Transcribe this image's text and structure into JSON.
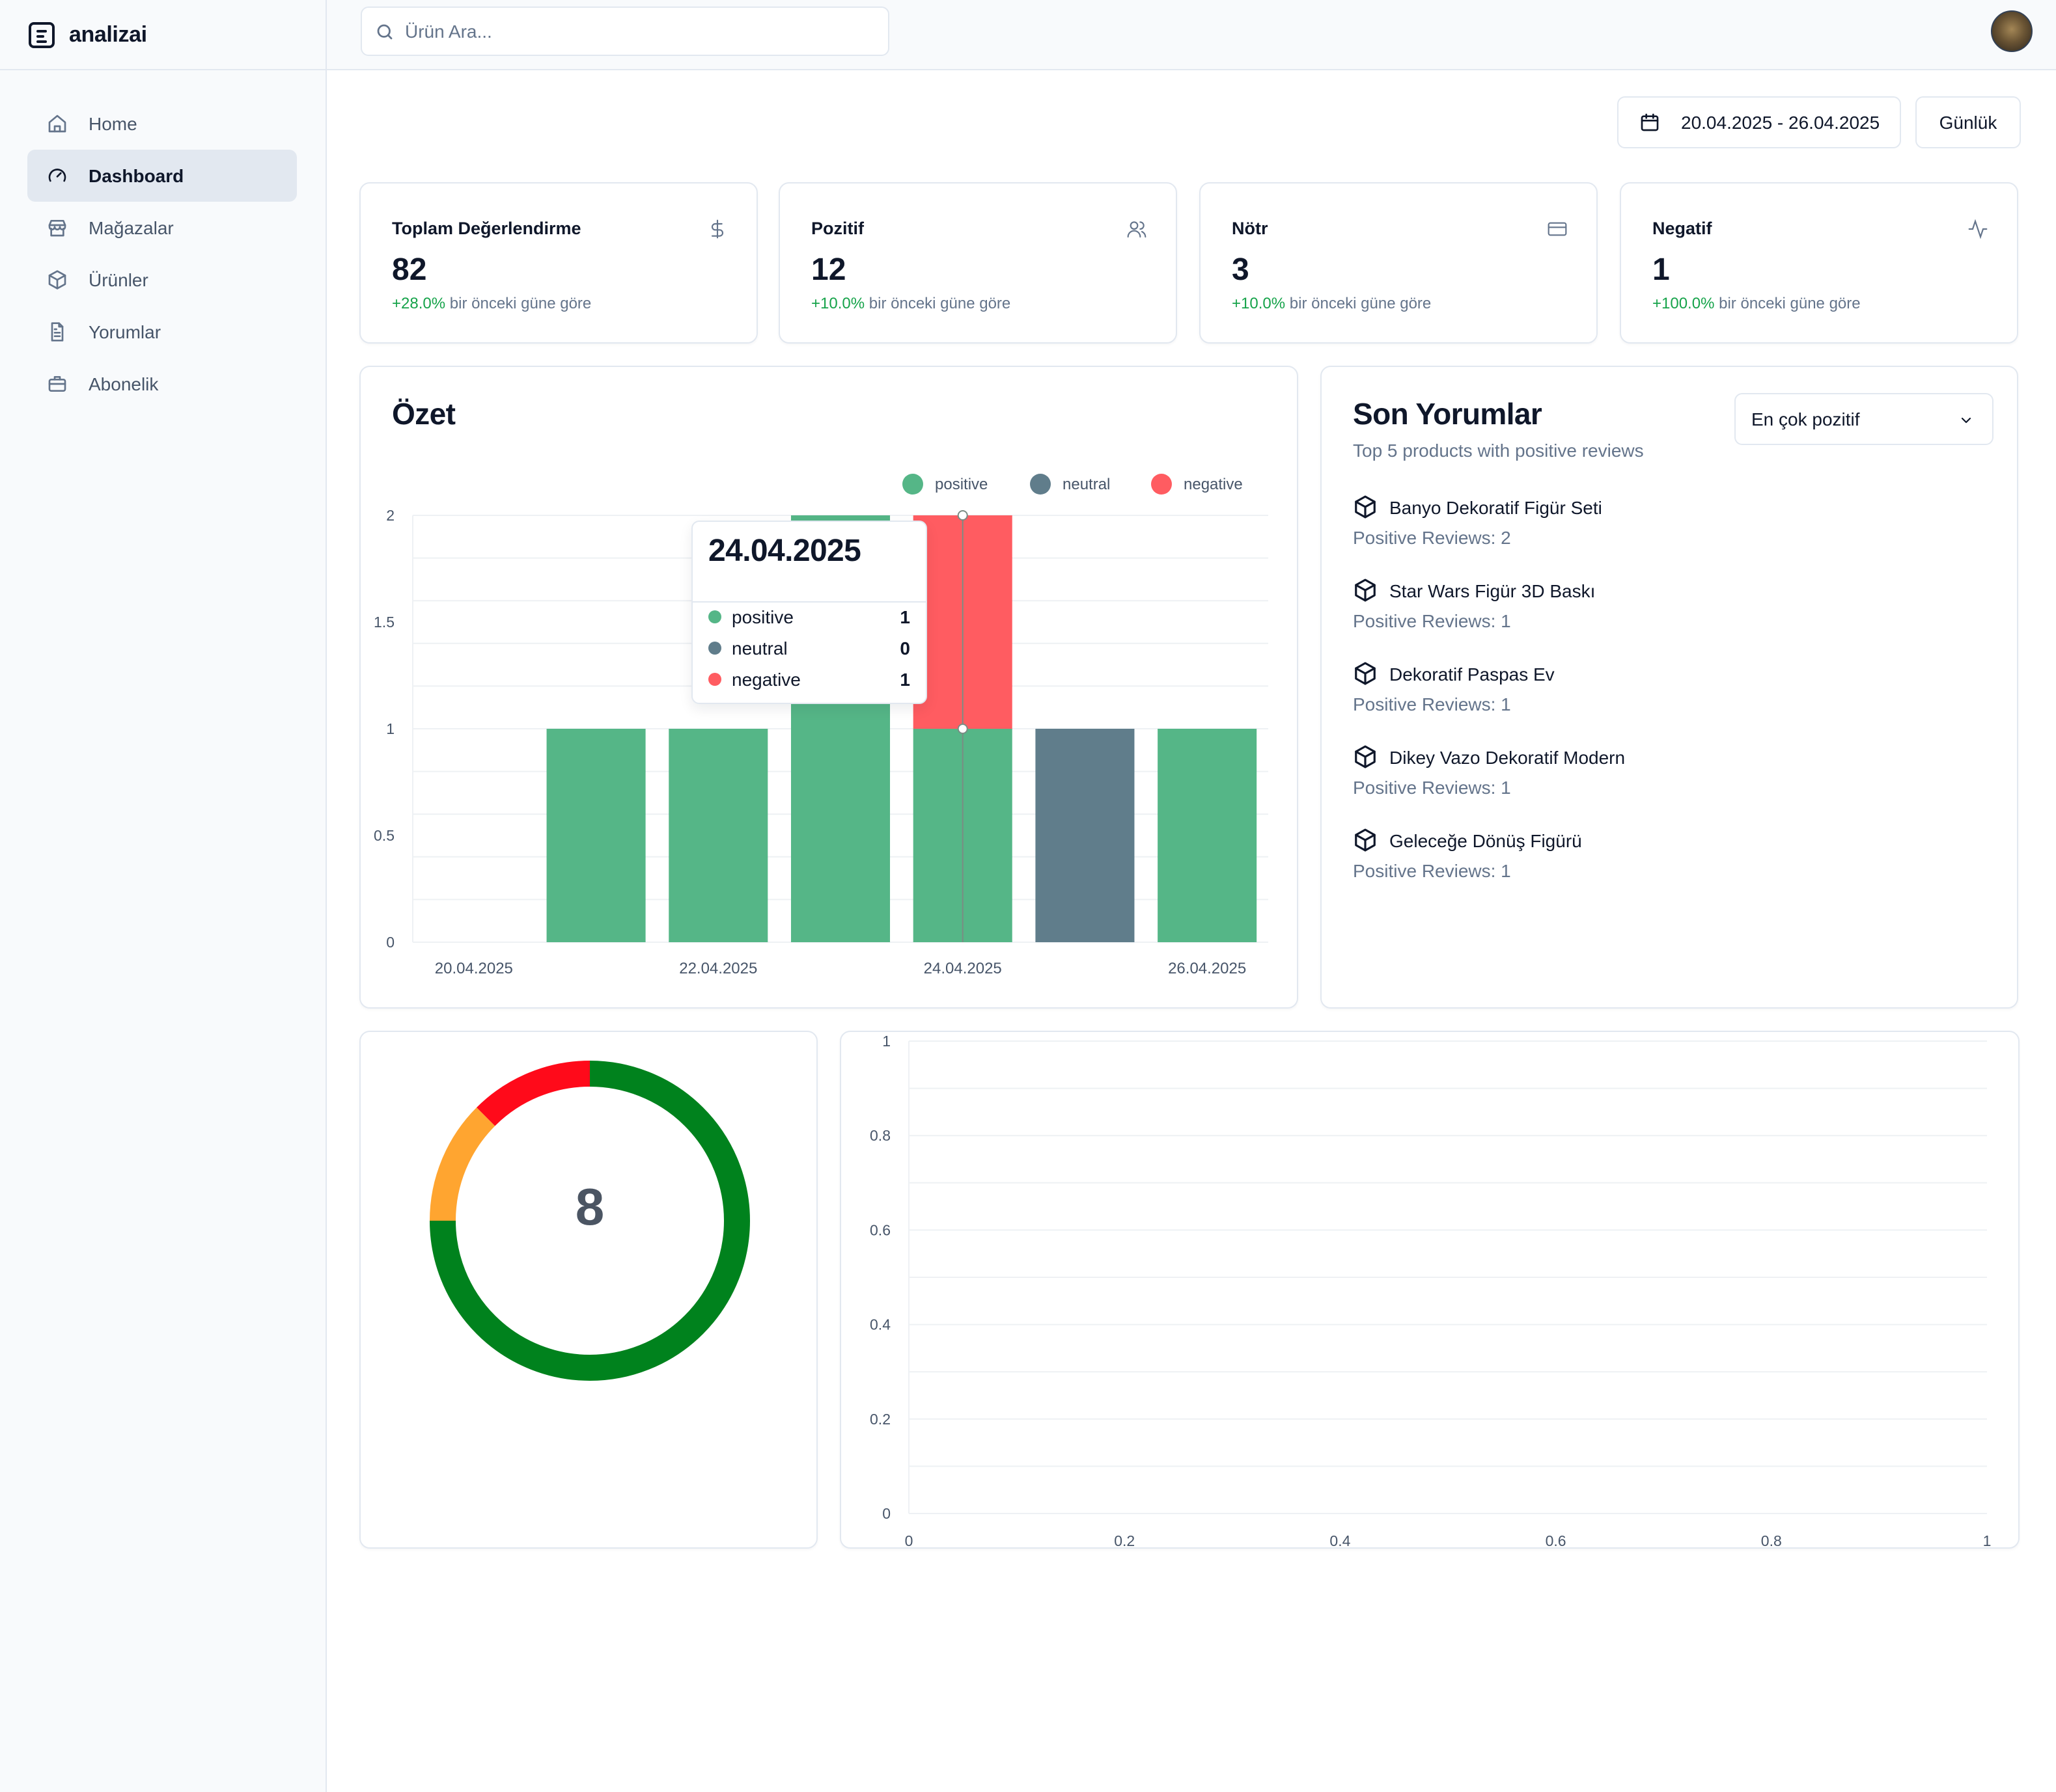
{
  "app": {
    "name": "analizai"
  },
  "sidebar": {
    "items": [
      {
        "label": "Home",
        "icon": "home-icon",
        "active": false
      },
      {
        "label": "Dashboard",
        "icon": "gauge-icon",
        "active": true
      },
      {
        "label": "Mağazalar",
        "icon": "store-icon",
        "active": false
      },
      {
        "label": "Ürünler",
        "icon": "package-icon",
        "active": false
      },
      {
        "label": "Yorumlar",
        "icon": "file-text-icon",
        "active": false
      },
      {
        "label": "Abonelik",
        "icon": "briefcase-icon",
        "active": false
      }
    ]
  },
  "search": {
    "placeholder": "Ürün Ara...",
    "value": ""
  },
  "toolbar": {
    "date_range": "20.04.2025 - 26.04.2025",
    "period": "Günlük"
  },
  "stats": [
    {
      "title": "Toplam Değerlendirme",
      "value": "82",
      "delta": "+28.0%",
      "delta_text": "bir önceki güne göre",
      "icon": "dollar-icon"
    },
    {
      "title": "Pozitif",
      "value": "12",
      "delta": "+10.0%",
      "delta_text": "bir önceki güne göre",
      "icon": "users-icon"
    },
    {
      "title": "Nötr",
      "value": "3",
      "delta": "+10.0%",
      "delta_text": "bir önceki güne göre",
      "icon": "credit-card-icon"
    },
    {
      "title": "Negatif",
      "value": "1",
      "delta": "+100.0%",
      "delta_text": "bir önceki güne göre",
      "icon": "activity-icon"
    }
  ],
  "summary": {
    "title": "Özet",
    "tooltip": {
      "date": "24.04.2025",
      "rows": [
        {
          "label": "positive",
          "value": "1"
        },
        {
          "label": "neutral",
          "value": "0"
        },
        {
          "label": "negative",
          "value": "1"
        }
      ]
    }
  },
  "colors": {
    "positive": "#55b687",
    "neutral": "#607d8b",
    "negative": "#ff5c61",
    "donut_green": "#00821d",
    "donut_orange": "#ffa530",
    "donut_red": "#ff0a1a"
  },
  "chart_data": [
    {
      "type": "bar",
      "stacked": true,
      "categories": [
        "20.04.2025",
        "21.04.2025",
        "22.04.2025",
        "23.04.2025",
        "24.04.2025",
        "25.04.2025",
        "26.04.2025"
      ],
      "tick_labels_x": [
        "20.04.2025",
        "22.04.2025",
        "24.04.2025",
        "26.04.2025"
      ],
      "series": [
        {
          "name": "positive",
          "values": [
            0,
            1,
            1,
            2,
            1,
            0,
            1
          ]
        },
        {
          "name": "neutral",
          "values": [
            0,
            0,
            0,
            0,
            0,
            1,
            0
          ]
        },
        {
          "name": "negative",
          "values": [
            0,
            0,
            0,
            0,
            1,
            0,
            0
          ]
        }
      ],
      "ylim": [
        0,
        2
      ],
      "yticks": [
        "0",
        "0.5",
        "1",
        "1.5",
        "2"
      ],
      "legend": "top-right",
      "grid": true
    },
    {
      "type": "pie",
      "donut": true,
      "center_label": "8",
      "values": [
        6,
        1,
        1
      ],
      "colors": [
        "#00821d",
        "#ffa530",
        "#ff0a1a"
      ]
    },
    {
      "type": "scatter",
      "series": [],
      "xlim": [
        0,
        1
      ],
      "ylim": [
        0,
        1
      ],
      "xticks": [
        "0",
        "0.2",
        "0.4",
        "0.6",
        "0.8",
        "1"
      ],
      "yticks": [
        "0",
        "0.2",
        "0.4",
        "0.6",
        "0.8",
        "1"
      ],
      "grid": true
    }
  ],
  "reviews": {
    "title": "Son Yorumlar",
    "subtitle": "Top 5 products with positive reviews",
    "filter": "En çok pozitif",
    "items": [
      {
        "name": "Banyo Dekoratif Figür Seti",
        "count": "Positive Reviews: 2"
      },
      {
        "name": "Star Wars Figür 3D Baskı",
        "count": "Positive Reviews: 1"
      },
      {
        "name": "Dekoratif Paspas Ev",
        "count": "Positive Reviews: 1"
      },
      {
        "name": "Dikey Vazo Dekoratif Modern",
        "count": "Positive Reviews: 1"
      },
      {
        "name": "Geleceğe Dönüş Figürü",
        "count": "Positive Reviews: 1"
      }
    ]
  }
}
